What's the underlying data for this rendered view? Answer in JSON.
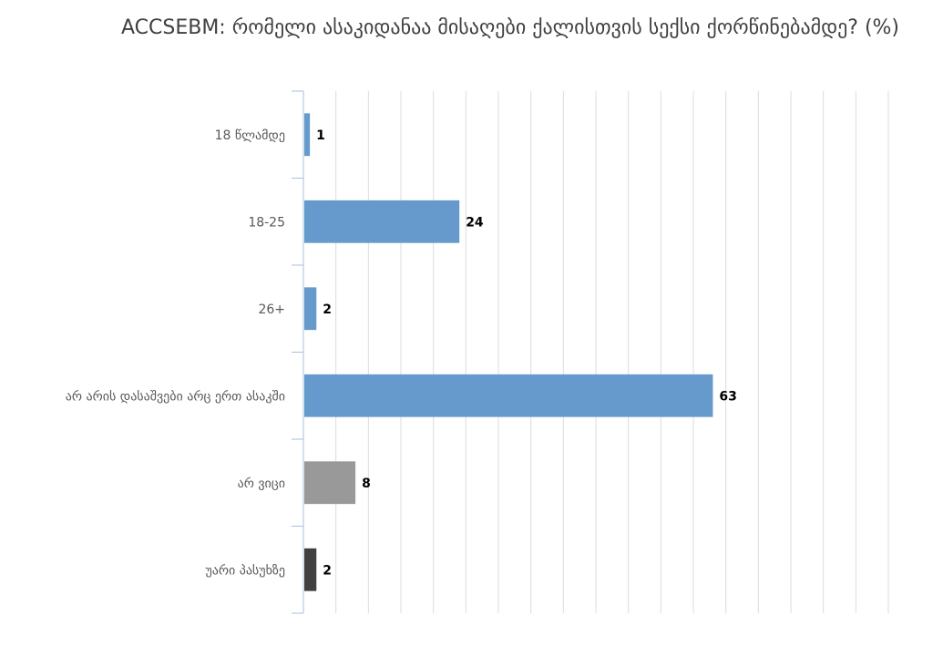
{
  "chart_data": {
    "type": "bar",
    "orientation": "horizontal",
    "title": "ACCSEBM: რომელი ასაკიდანაა მისაღები ქალისთვის სექსი ქორწინებამდე? (%)",
    "categories": [
      "18 წლამდე",
      "18-25",
      "26+",
      "არ არის დასაშვები არც ერთ ასაკში",
      "არ ვიცი",
      "უარი პასუხზე"
    ],
    "values": [
      1,
      24,
      2,
      63,
      8,
      2
    ],
    "bar_colors": [
      "#6699cc",
      "#6699cc",
      "#6699cc",
      "#6699cc",
      "#999999",
      "#404040"
    ],
    "xlim": [
      0,
      90
    ],
    "grid": true,
    "legend": false,
    "data_labels": true
  }
}
